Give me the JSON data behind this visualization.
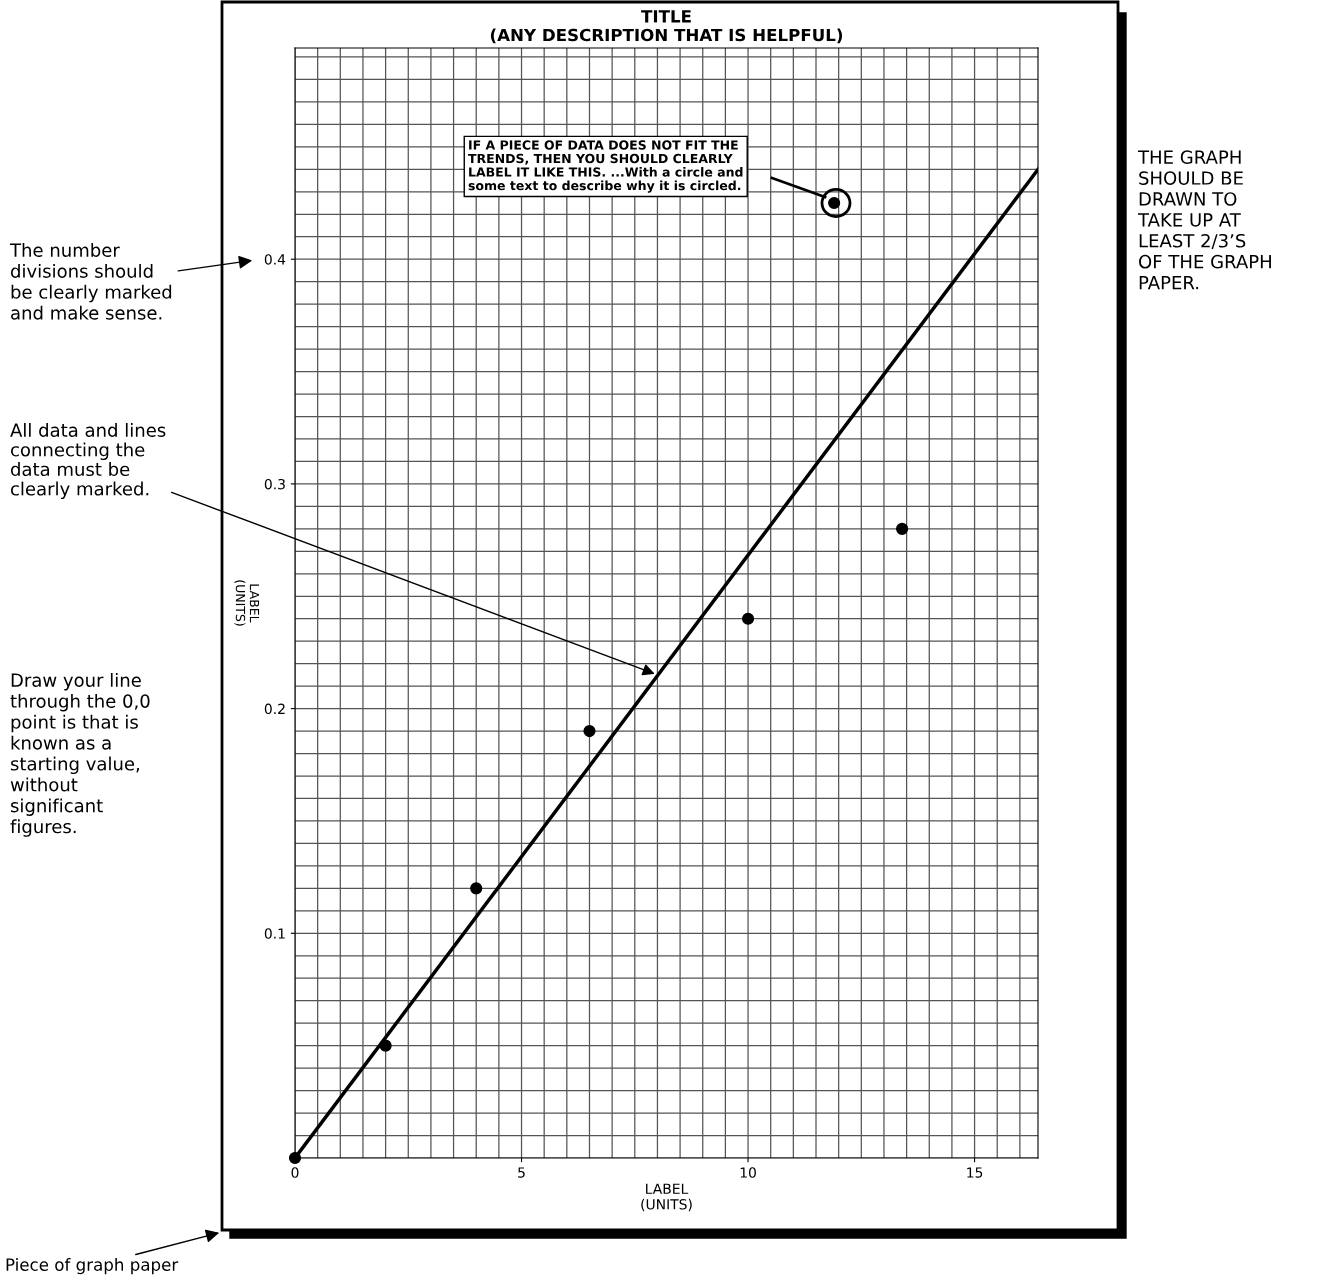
{
  "chart_data": {
    "type": "scatter",
    "title": "TITLE\n(ANY DESCRIPTION THAT IS HELPFUL)",
    "xlabel": "LABEL\n(UNITS)",
    "ylabel": "LABEL\n(UNITS)",
    "xlim": [
      0,
      16.4
    ],
    "ylim": [
      0,
      0.494
    ],
    "xticks": [
      0,
      5,
      10,
      15
    ],
    "yticks": [
      {
        "value": 0,
        "label": null
      },
      0.1,
      0.2,
      0.3,
      0.4
    ],
    "grid": true,
    "legend": false,
    "marker": "circle",
    "series": [
      {
        "color": "#000000",
        "x": [
          0,
          2,
          4,
          6.5,
          10,
          13.4,
          11.9
        ],
        "values": [
          0,
          0.05,
          0.12,
          0.19,
          0.24,
          0.28,
          0.425
        ]
      },
      {
        "type": "line",
        "color": "#000000",
        "line_style": "solid",
        "marker": "none",
        "x": [
          0,
          16.4
        ],
        "values": [
          0,
          0.44
        ]
      }
    ],
    "annotations": [
      "IF A PIECE OF DATA DOES NOT FIT THE\nTRENDS, THEN YOU SHOULD CLEARLY\nLABEL IT LIKE THIS. ...With a circle and\nsome text to describe why it is circled.",
      "The number\ndivisions should\nbe clearly marked\nand make sense.",
      {
        "text": "All data and lines\nconnecting the\ndata must be\nclearly marked.",
        "x": 8,
        "y": 0.215
      },
      "Draw your line\nthrough the 0,0\npoint is that is\nknown as a\nstarting value,\nwithout\nsignificant\nfigures.",
      "THE GRAPH\nSHOULD BE\nDRAWN TO\nTAKE UP AT\nLEAST 2/3’S\nOF THE GRAPH\nPAPER.",
      "Piece of graph paper"
    ]
  }
}
